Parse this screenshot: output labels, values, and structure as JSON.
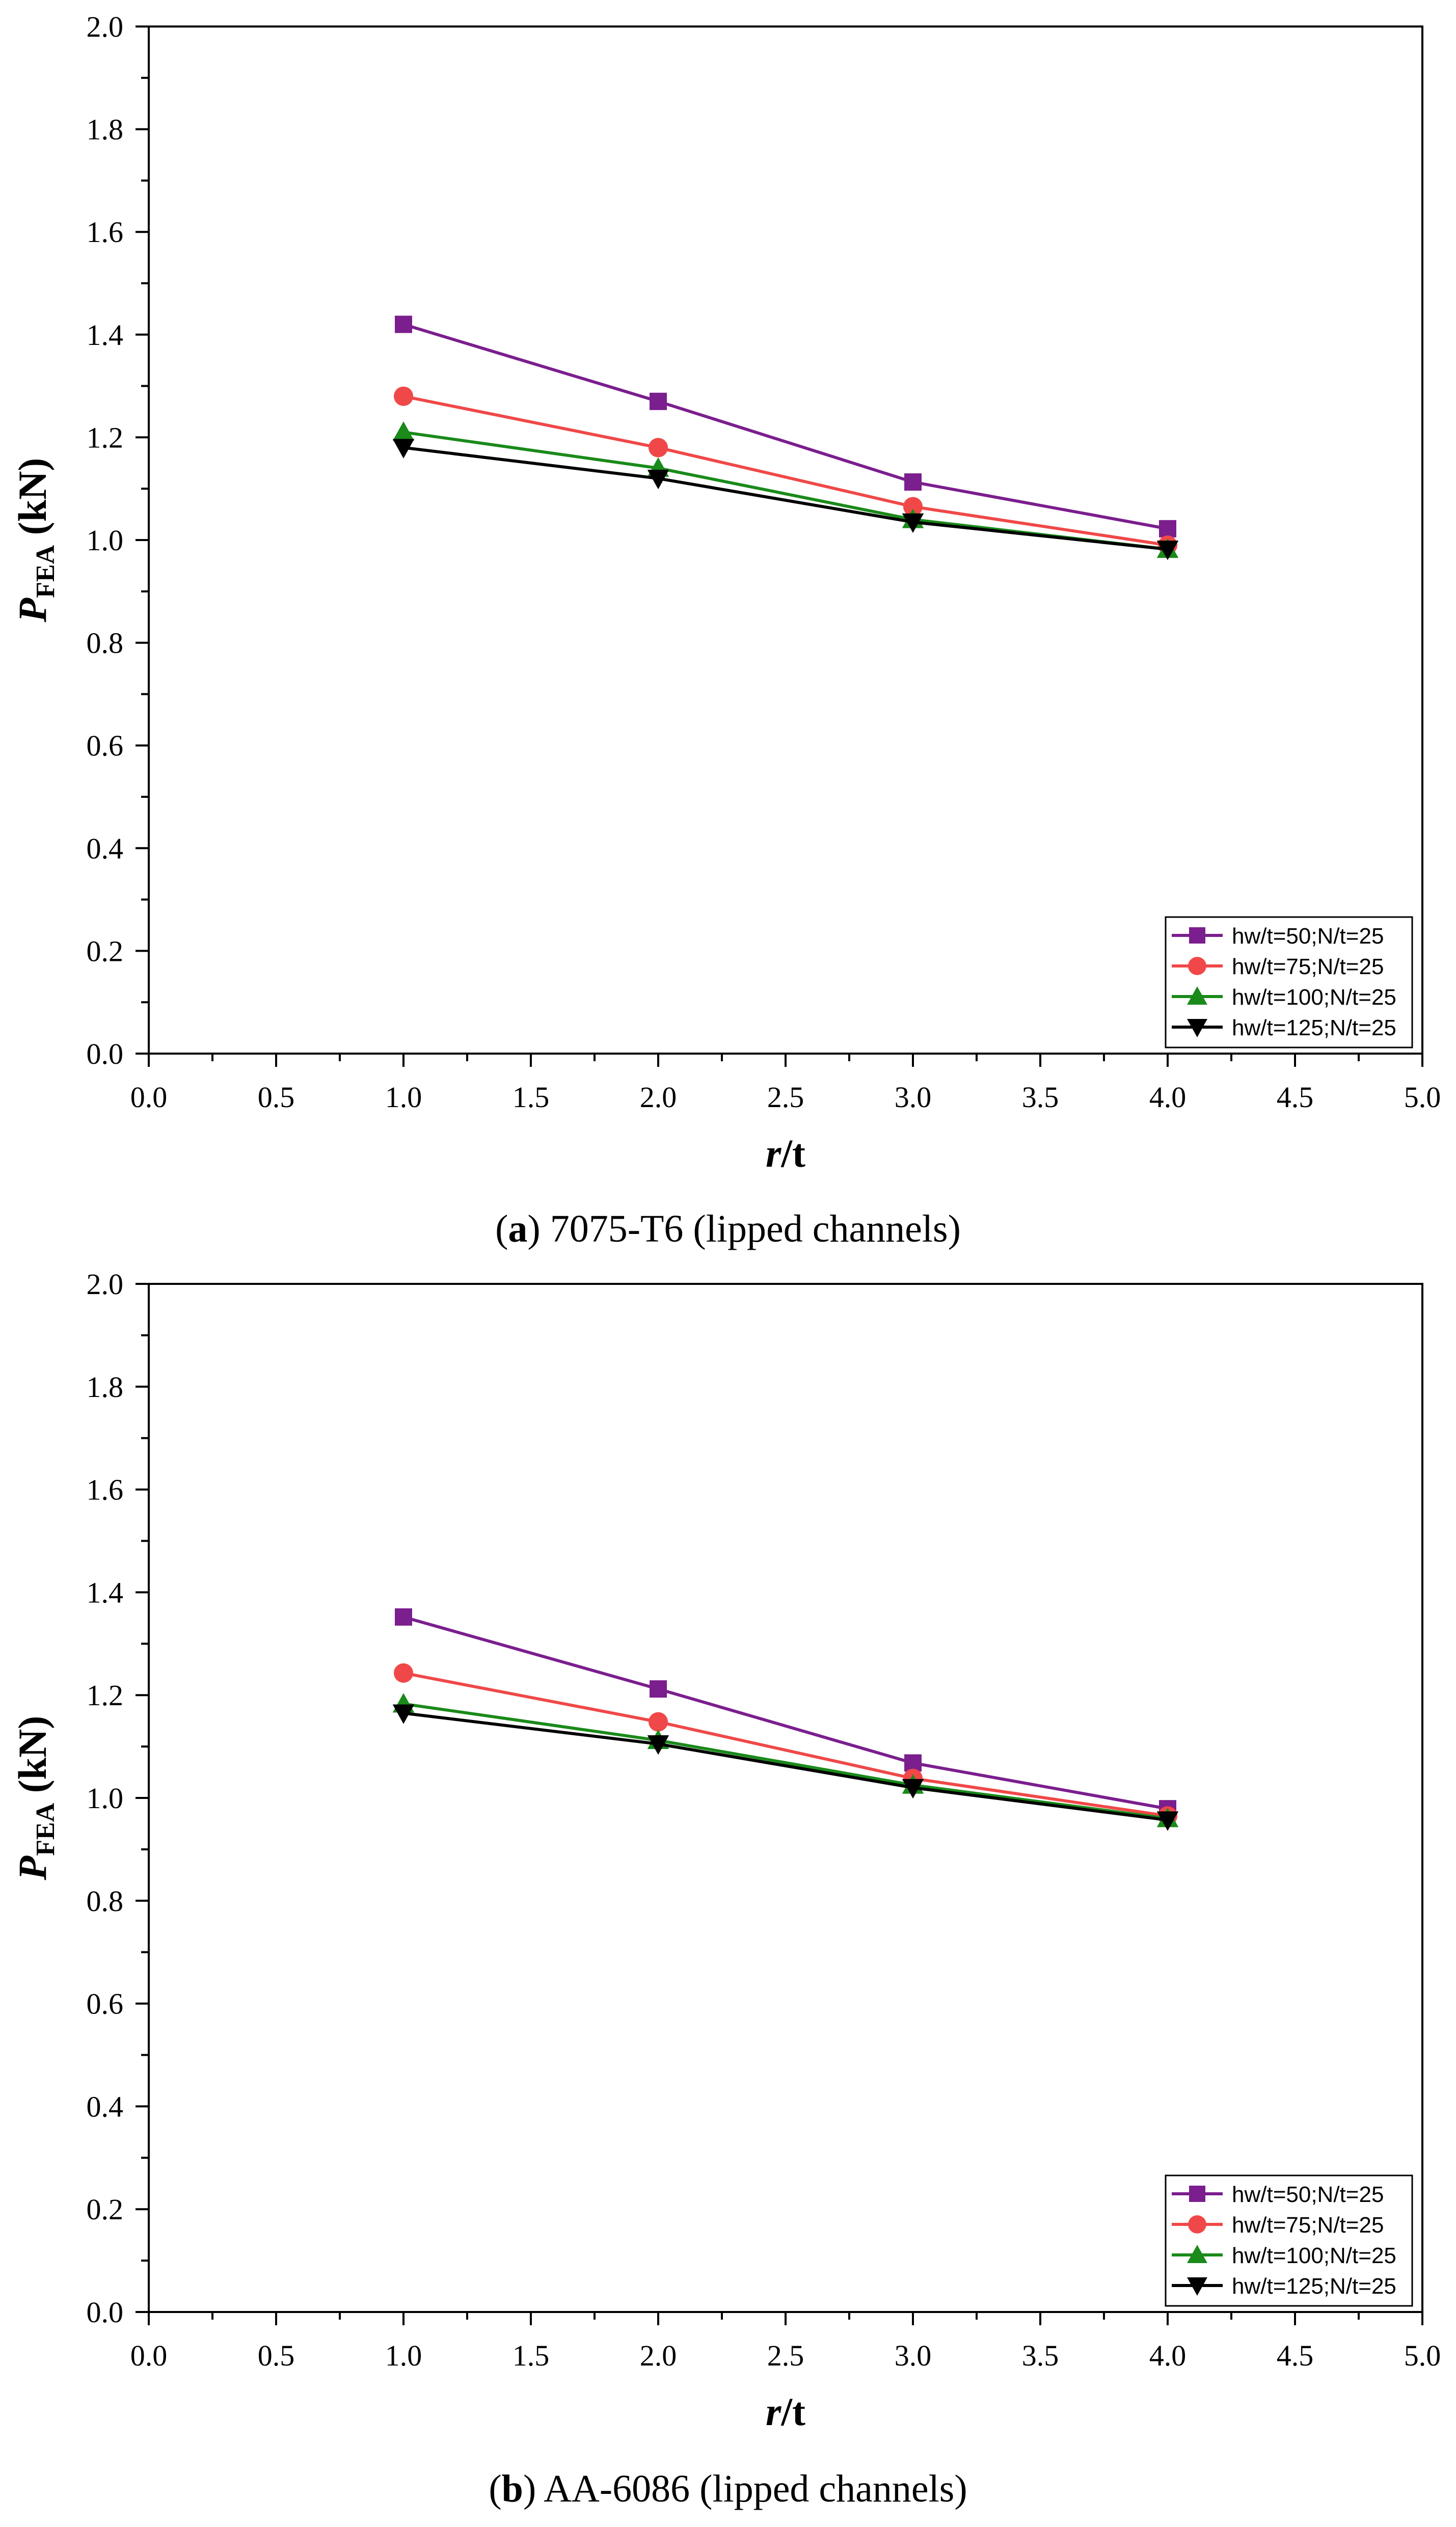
{
  "chart_data": [
    {
      "type": "line",
      "title": "",
      "caption": {
        "letter": "a",
        "text": "7075-T6 (lipped channels)"
      },
      "ylabel": {
        "base": "P",
        "sub": "FEA",
        "unit": " (kN)"
      },
      "xlabel": {
        "base": "r",
        "rest": "/t"
      },
      "xlim": [
        0.0,
        5.0
      ],
      "ylim": [
        0.0,
        2.0
      ],
      "xticks": [
        "0.0",
        "0.5",
        "1.0",
        "1.5",
        "2.0",
        "2.5",
        "3.0",
        "3.5",
        "4.0",
        "4.5",
        "5.0"
      ],
      "yticks": [
        "0.0",
        "0.2",
        "0.4",
        "0.6",
        "0.8",
        "1.0",
        "1.2",
        "1.4",
        "1.6",
        "1.8",
        "2.0"
      ],
      "legend_position": "bottom-right",
      "x": [
        1.0,
        2.0,
        3.0,
        4.0
      ],
      "series": [
        {
          "name": "hw/t=50;N/t=25",
          "color": "#7b1e8e",
          "marker": "square",
          "values": [
            1.42,
            1.27,
            1.113,
            1.022
          ]
        },
        {
          "name": "hw/t=75;N/t=25",
          "color": "#f04848",
          "marker": "circle",
          "values": [
            1.28,
            1.18,
            1.065,
            0.99
          ]
        },
        {
          "name": "hw/t=100;N/t=25",
          "color": "#1a8a1a",
          "marker": "triangle-up",
          "values": [
            1.21,
            1.14,
            1.04,
            0.982
          ]
        },
        {
          "name": "hw/t=125;N/t=25",
          "color": "#000000",
          "marker": "triangle-down",
          "values": [
            1.18,
            1.12,
            1.035,
            0.982
          ]
        }
      ]
    },
    {
      "type": "line",
      "title": "",
      "caption": {
        "letter": "b",
        "text": "AA-6086 (lipped channels)"
      },
      "ylabel": {
        "base": "P",
        "sub": "FEA",
        "unit": " (kN)"
      },
      "xlabel": {
        "base": "r",
        "rest": "/t"
      },
      "xlim": [
        0.0,
        5.0
      ],
      "ylim": [
        0.0,
        2.0
      ],
      "xticks": [
        "0.0",
        "0.5",
        "1.0",
        "1.5",
        "2.0",
        "2.5",
        "3.0",
        "3.5",
        "4.0",
        "4.5",
        "5.0"
      ],
      "yticks": [
        "0.0",
        "0.2",
        "0.4",
        "0.6",
        "0.8",
        "1.0",
        "1.2",
        "1.4",
        "1.6",
        "1.8",
        "2.0"
      ],
      "legend_position": "bottom-right",
      "x": [
        1.0,
        2.0,
        3.0,
        4.0
      ],
      "series": [
        {
          "name": "hw/t=50;N/t=25",
          "color": "#7b1e8e",
          "marker": "square",
          "values": [
            1.352,
            1.212,
            1.068,
            0.979
          ]
        },
        {
          "name": "hw/t=75;N/t=25",
          "color": "#f04848",
          "marker": "circle",
          "values": [
            1.243,
            1.148,
            1.038,
            0.965
          ]
        },
        {
          "name": "hw/t=100;N/t=25",
          "color": "#1a8a1a",
          "marker": "triangle-up",
          "values": [
            1.183,
            1.112,
            1.025,
            0.96
          ]
        },
        {
          "name": "hw/t=125;N/t=25",
          "color": "#000000",
          "marker": "triangle-down",
          "values": [
            1.165,
            1.105,
            1.02,
            0.957
          ]
        }
      ]
    }
  ]
}
